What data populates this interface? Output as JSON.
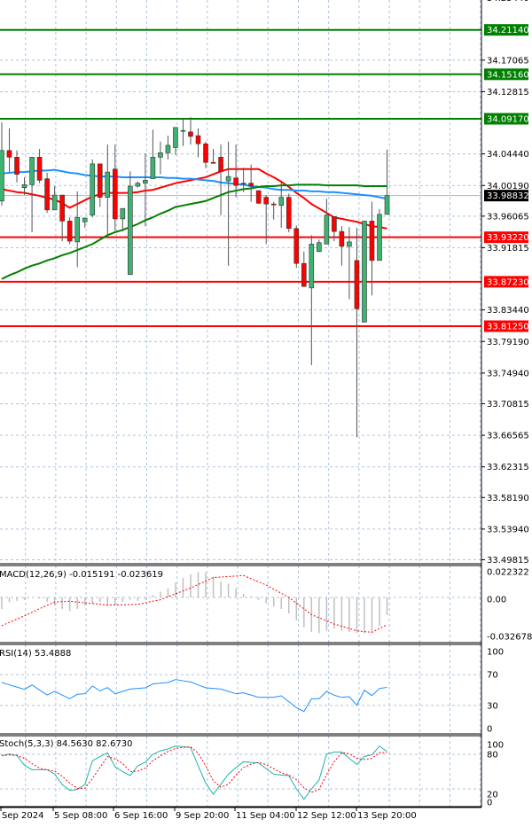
{
  "chart_data": [
    {
      "type": "candlestick",
      "symbol_panel": "price",
      "y_ticks": [
        "34.25440",
        "34.17065",
        "34.12815",
        "34.04440",
        "34.00190",
        "33.96065",
        "33.91815",
        "33.83440",
        "33.79190",
        "33.74940",
        "33.70815",
        "33.66565",
        "33.62315",
        "33.58190",
        "33.53940",
        "33.49815"
      ],
      "ylim": [
        33.493,
        34.2516
      ],
      "x_tick_labels": [
        "Sep 2024",
        "5 Sep 08:00",
        "6 Sep 16:00",
        "9 Sep 20:00",
        "11 Sep 04:00",
        "12 Sep 12:00",
        "13 Sep 20:00"
      ],
      "current_price": "33.98832",
      "levels": [
        {
          "value": "34.21140",
          "color": "#008000"
        },
        {
          "value": "34.15160",
          "color": "#008000"
        },
        {
          "value": "34.09170",
          "color": "#008000"
        },
        {
          "value": "33.93220",
          "color": "#ff0000"
        },
        {
          "value": "33.87230",
          "color": "#ff0000"
        },
        {
          "value": "33.81250",
          "color": "#ff0000"
        }
      ],
      "candles_ohlc": [
        [
          33.981,
          34.087,
          33.975,
          34.049
        ],
        [
          34.049,
          34.079,
          34.019,
          34.04
        ],
        [
          34.04,
          34.049,
          34.006,
          34.017
        ],
        [
          33.999,
          34.013,
          33.989,
          34.003
        ],
        [
          34.003,
          34.04,
          33.939,
          34.04
        ],
        [
          34.04,
          34.051,
          34.005,
          34.009
        ],
        [
          34.011,
          34.019,
          33.965,
          33.969
        ],
        [
          33.969,
          34.001,
          33.969,
          33.989
        ],
        [
          33.989,
          33.989,
          33.927,
          33.954
        ],
        [
          33.954,
          33.959,
          33.923,
          33.927
        ],
        [
          33.926,
          33.994,
          33.892,
          33.959
        ],
        [
          33.953,
          33.959,
          33.945,
          33.958
        ],
        [
          33.962,
          34.037,
          33.959,
          34.031
        ],
        [
          34.031,
          34.031,
          33.973,
          33.986
        ],
        [
          33.986,
          34.057,
          33.933,
          34.02
        ],
        [
          34.024,
          34.057,
          33.941,
          33.957
        ],
        [
          33.957,
          33.971,
          33.94,
          33.971
        ],
        [
          33.882,
          34.021,
          33.882,
          34.001
        ],
        [
          34.001,
          34.007,
          33.999,
          34.005
        ],
        [
          34.005,
          34.045,
          33.947,
          34.009
        ],
        [
          34.011,
          34.077,
          34.011,
          34.04
        ],
        [
          34.04,
          34.061,
          34.017,
          34.046
        ],
        [
          34.046,
          34.069,
          34.037,
          34.056
        ],
        [
          34.053,
          34.08,
          34.043,
          34.08
        ],
        [
          34.075,
          34.093,
          34.055,
          34.076
        ],
        [
          34.074,
          34.094,
          34.057,
          34.068
        ],
        [
          34.069,
          34.079,
          34.04,
          34.058
        ],
        [
          34.058,
          34.061,
          34.025,
          34.033
        ],
        [
          34.033,
          34.051,
          34.031,
          34.032
        ],
        [
          34.04,
          34.057,
          33.962,
          34.021
        ],
        [
          34.008,
          34.061,
          33.894,
          34.014
        ],
        [
          34.012,
          34.057,
          33.986,
          34.002
        ],
        [
          34.005,
          34.026,
          33.993,
          34.004
        ],
        [
          34.005,
          34.03,
          33.98,
          34.001
        ],
        [
          33.995,
          33.995,
          33.977,
          33.978
        ],
        [
          33.986,
          33.989,
          33.923,
          33.977
        ],
        [
          33.977,
          33.98,
          33.956,
          33.976
        ],
        [
          33.975,
          34.007,
          33.945,
          33.986
        ],
        [
          33.986,
          33.991,
          33.939,
          33.944
        ],
        [
          33.944,
          33.948,
          33.891,
          33.897
        ],
        [
          33.897,
          33.913,
          33.866,
          33.866
        ],
        [
          33.864,
          33.935,
          33.76,
          33.923
        ],
        [
          33.913,
          33.929,
          33.912,
          33.925
        ],
        [
          33.923,
          33.984,
          33.923,
          33.962
        ],
        [
          33.96,
          33.96,
          33.927,
          33.94
        ],
        [
          33.94,
          33.947,
          33.894,
          33.92
        ],
        [
          33.92,
          33.946,
          33.849,
          33.926
        ],
        [
          33.901,
          33.945,
          33.663,
          33.836
        ],
        [
          33.818,
          33.954,
          33.818,
          33.954
        ],
        [
          33.954,
          33.98,
          33.854,
          33.901
        ],
        [
          33.901,
          33.97,
          33.901,
          33.963
        ],
        [
          33.963,
          34.05,
          33.963,
          33.98832
        ]
      ],
      "moving_averages": [
        {
          "color": "#ff0000",
          "values": [
            33.997,
            33.995,
            33.993,
            33.992,
            33.99,
            33.988,
            33.985,
            33.983,
            33.978,
            33.972,
            33.977,
            33.982,
            33.987,
            33.99,
            33.992,
            33.992,
            33.992,
            33.992,
            33.993,
            33.995,
            33.996,
            33.999,
            34.002,
            34.005,
            34.007,
            34.009,
            34.011,
            34.013,
            34.017,
            34.021,
            34.024,
            34.024,
            34.024,
            34.024,
            34.024,
            34.018,
            34.013,
            34.007,
            34.0,
            33.992,
            33.985,
            33.977,
            33.971,
            33.965,
            33.959,
            33.957,
            33.955,
            33.953,
            33.95,
            33.947,
            33.946,
            33.944
          ]
        },
        {
          "color": "#1e90ff",
          "values": [
            34.018,
            34.019,
            34.02,
            34.02,
            34.021,
            34.022,
            34.022,
            34.023,
            34.021,
            34.019,
            34.018,
            34.016,
            34.015,
            34.014,
            34.014,
            34.014,
            34.013,
            34.013,
            34.013,
            34.013,
            34.013,
            34.013,
            34.012,
            34.012,
            34.011,
            34.011,
            34.01,
            34.009,
            34.008,
            34.006,
            34.005,
            34.004,
            34.003,
            34.001,
            34.0,
            33.999,
            33.997,
            33.996,
            33.996,
            33.995,
            33.995,
            33.994,
            33.994,
            33.993,
            33.993,
            33.992,
            33.991,
            33.99,
            33.989,
            33.988,
            33.986,
            33.984
          ]
        },
        {
          "color": "#008000",
          "values": [
            33.876,
            33.881,
            33.885,
            33.89,
            33.894,
            33.897,
            33.901,
            33.904,
            33.908,
            33.911,
            33.915,
            33.919,
            33.923,
            33.929,
            33.935,
            33.939,
            33.942,
            33.946,
            33.95,
            33.955,
            33.959,
            33.964,
            33.968,
            33.973,
            33.975,
            33.977,
            33.979,
            33.981,
            33.985,
            33.989,
            33.993,
            33.995,
            33.997,
            33.998,
            34.0,
            34.001,
            34.001,
            34.002,
            34.002,
            34.003,
            34.003,
            34.003,
            34.003,
            34.002,
            34.002,
            34.002,
            34.002,
            34.002,
            34.001,
            34.001,
            34.001,
            34.001
          ]
        }
      ],
      "up_color": "#3cb371",
      "down_color": "#ff0000",
      "grid": true
    },
    {
      "type": "bar+line",
      "title": "MACD(12,26,9) -0.015191 -0.023619",
      "y_ticks": [
        "0.022322",
        "0.00",
        "-0.032678"
      ],
      "ylim": [
        -0.032678,
        0.022322
      ],
      "histogram": [
        -0.01,
        -0.004,
        -0.003,
        -0.002,
        0.0,
        -0.001,
        -0.004,
        -0.007,
        -0.01,
        -0.012,
        -0.01,
        -0.007,
        -0.005,
        -0.004,
        -0.007,
        -0.006,
        -0.004,
        -0.002,
        -0.003,
        -0.002,
        0.002,
        0.005,
        0.008,
        0.013,
        0.017,
        0.02,
        0.022,
        0.022,
        0.018,
        0.014,
        0.012,
        0.008,
        0.003,
        0.001,
        -0.002,
        -0.005,
        -0.008,
        -0.01,
        -0.014,
        -0.02,
        -0.026,
        -0.03,
        -0.031,
        -0.029,
        -0.027,
        -0.029,
        -0.03,
        -0.031,
        -0.031,
        -0.03,
        -0.025,
        -0.015191
      ],
      "signal": [
        -0.0246,
        -0.0217,
        -0.0188,
        -0.0159,
        -0.013,
        -0.0098,
        -0.0069,
        -0.004,
        -0.0036,
        -0.0033,
        -0.004,
        -0.0047,
        -0.0053,
        -0.006,
        -0.0067,
        -0.0065,
        -0.0064,
        -0.0062,
        -0.006,
        -0.0047,
        -0.0033,
        -0.002,
        0.0006,
        0.0031,
        0.0057,
        0.0082,
        0.0112,
        0.0142,
        0.0172,
        0.0177,
        0.0181,
        0.0186,
        0.019,
        0.0163,
        0.0135,
        0.0108,
        0.0072,
        0.0036,
        0.0,
        -0.005,
        -0.0099,
        -0.0149,
        -0.0176,
        -0.0204,
        -0.0231,
        -0.025,
        -0.027,
        -0.029,
        -0.0297,
        -0.0303,
        -0.027,
        -0.023619
      ],
      "histogram_color": "#c0c0c0",
      "signal_color": "#ff0000"
    },
    {
      "type": "line",
      "title": "RSI(14) 53.4888",
      "y_ticks": [
        "100",
        "70",
        "30",
        "0"
      ],
      "ylim": [
        0,
        100
      ],
      "levels": [
        70,
        30
      ],
      "values": [
        59.8,
        56.8,
        53.9,
        50.9,
        56.6,
        50.1,
        43.6,
        48.3,
        43.5,
        38.7,
        44.5,
        45.2,
        55.2,
        49.0,
        53.2,
        45.2,
        48.3,
        51.3,
        52.1,
        52.9,
        57.9,
        58.9,
        59.8,
        63.6,
        62.0,
        60.5,
        56.7,
        52.9,
        52.1,
        51.3,
        48.3,
        45.2,
        46.4,
        43.5,
        40.6,
        40.6,
        40.6,
        42.5,
        34.9,
        27.2,
        22.2,
        38.7,
        38.7,
        48.3,
        43.3,
        40.6,
        41.4,
        30.3,
        49.8,
        42.9,
        52.1,
        53.4888
      ],
      "color": "#1e90ff"
    },
    {
      "type": "line",
      "title": "Stoch(5,3,3) 84.5630 82.6730",
      "y_ticks": [
        "100",
        "80",
        "20",
        "0"
      ],
      "ylim": [
        0,
        100
      ],
      "levels": [
        80,
        20
      ],
      "main": [
        77.4,
        80.5,
        78,
        61,
        53.3,
        53.3,
        53.3,
        45.6,
        27.7,
        17.4,
        19,
        27.7,
        68.7,
        76,
        82.6,
        58.5,
        50,
        43.1,
        60,
        66.2,
        80,
        86,
        89.2,
        94.4,
        93.3,
        91.8,
        60,
        30,
        10.8,
        28,
        45.6,
        57,
        67.2,
        66,
        65.1,
        55,
        45.6,
        44,
        43.1,
        20,
        2,
        20,
        35.4,
        80.5,
        84.1,
        84.1,
        73,
        62.6,
        76.4,
        79,
        94.4,
        84.563
      ],
      "signal": [
        78,
        79,
        78,
        73,
        64,
        56,
        53,
        51,
        42,
        30,
        21,
        21,
        38,
        57,
        76,
        72,
        64,
        50,
        51,
        56,
        69,
        77,
        85,
        90,
        92,
        93,
        82,
        60,
        34,
        23,
        28,
        44,
        57,
        63,
        66,
        62,
        55,
        48,
        44,
        36,
        22,
        14,
        19,
        45,
        67,
        83,
        81,
        73,
        71,
        73,
        83,
        82.673
      ],
      "main_color": "#20b2aa",
      "signal_color": "#ff0000"
    }
  ]
}
